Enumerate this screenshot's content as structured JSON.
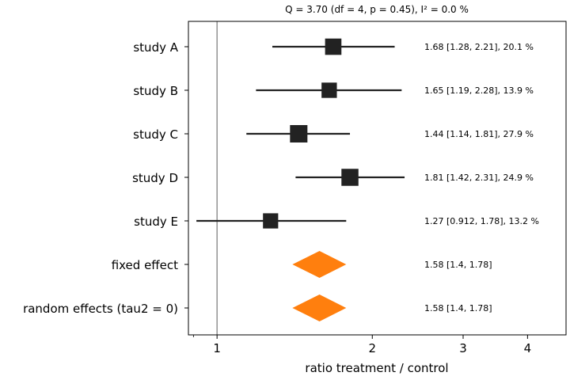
{
  "chart_data": {
    "type": "forest",
    "title": "Q = 3.70 (df = 4, p = 0.45), I² = 0.0 %",
    "xlabel": "ratio treatment / control",
    "xscale": "log",
    "xlim": [
      0.88,
      4.75
    ],
    "xticks": [
      {
        "value": 1,
        "label": "1"
      },
      {
        "value": 2,
        "label": "2"
      },
      {
        "value": 3,
        "label": "3"
      },
      {
        "value": 4,
        "label": "4"
      }
    ],
    "reference_line": 1,
    "studies": [
      {
        "label": "study A",
        "estimate": 1.68,
        "ci": [
          1.28,
          2.21
        ],
        "weight": 20.1,
        "text": "1.68 [1.28, 2.21], 20.1 %"
      },
      {
        "label": "study B",
        "estimate": 1.65,
        "ci": [
          1.19,
          2.28
        ],
        "weight": 13.9,
        "text": "1.65 [1.19, 2.28], 13.9 %"
      },
      {
        "label": "study C",
        "estimate": 1.44,
        "ci": [
          1.14,
          1.81
        ],
        "weight": 27.9,
        "text": "1.44 [1.14, 1.81], 27.9 %"
      },
      {
        "label": "study D",
        "estimate": 1.81,
        "ci": [
          1.42,
          2.31
        ],
        "weight": 24.9,
        "text": "1.81 [1.42, 2.31], 24.9 %"
      },
      {
        "label": "study E",
        "estimate": 1.27,
        "ci": [
          0.912,
          1.78
        ],
        "weight": 13.2,
        "text": "1.27 [0.912, 1.78], 13.2 %"
      }
    ],
    "summaries": [
      {
        "label": "fixed effect",
        "estimate": 1.58,
        "ci": [
          1.4,
          1.78
        ],
        "text": "1.58 [1.4, 1.78]"
      },
      {
        "label": "random effects (tau2 = 0)",
        "estimate": 1.58,
        "ci": [
          1.4,
          1.78
        ],
        "text": "1.58 [1.4, 1.78]"
      }
    ],
    "colors": {
      "study": "#222222",
      "summary": "#ff7f0e",
      "reference": "#808080"
    }
  }
}
